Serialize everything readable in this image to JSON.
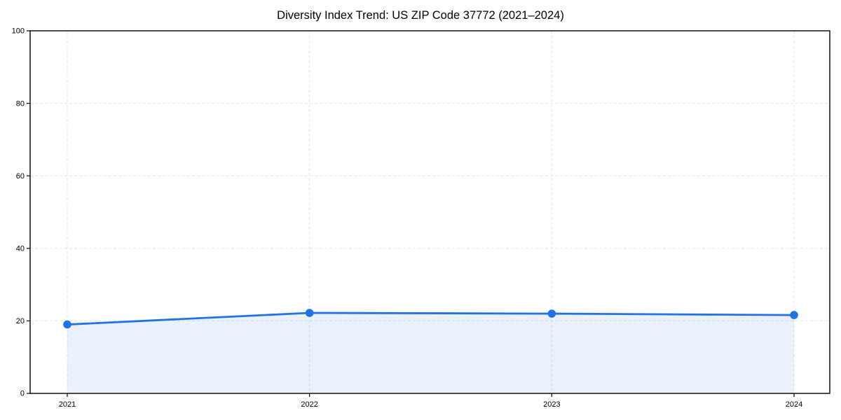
{
  "title": "Diversity Index Trend: US ZIP Code 37772 (2021–2024)",
  "chart_data": {
    "type": "line",
    "x": [
      "2021",
      "2022",
      "2023",
      "2024"
    ],
    "series": [
      {
        "name": "Diversity Index",
        "values": [
          19.0,
          22.2,
          22.0,
          21.6
        ]
      }
    ],
    "title": "Diversity Index Trend: US ZIP Code 37772 (2021–2024)",
    "xlabel": "",
    "ylabel": "",
    "ylim": [
      0,
      100
    ],
    "yticks": [
      0,
      20,
      40,
      60,
      80,
      100
    ],
    "grid": "dashed",
    "legend": "none",
    "area_fill": true,
    "markers": "circle",
    "colors": {
      "line": "#2272e3",
      "marker": "#2272e3",
      "fill": "#2272e3",
      "fill_opacity": "0.10",
      "grid": "#e2e2e2",
      "spine": "#000000",
      "text": "#000000",
      "background": "#ffffff"
    }
  }
}
